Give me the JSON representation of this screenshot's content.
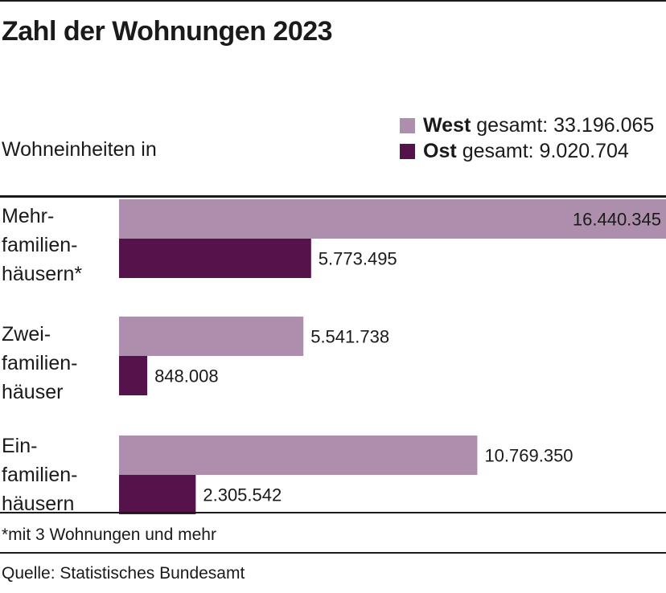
{
  "title": "Zahl der Wohnungen 2023",
  "units_label": "Wohneinheiten in",
  "legend": [
    {
      "name": "West",
      "text": "gesamt: 33.196.065",
      "color": "#ad8fad"
    },
    {
      "name": "Ost",
      "text": "gesamt: 9.020.704",
      "color": "#56124a"
    }
  ],
  "chart_data": {
    "type": "bar",
    "orientation": "horizontal",
    "categories": [
      "Mehr-\nfamilien-\nhäusern*",
      "Zwei-\nfamilien-\nhäuser",
      "Ein-\nfamilien-\nhäusern"
    ],
    "series": [
      {
        "name": "West",
        "values": [
          16440345,
          5541738,
          10769350
        ],
        "labels": [
          "16.440.345",
          "5.541.738",
          "10.769.350"
        ],
        "color": "#ad8fad"
      },
      {
        "name": "Ost",
        "values": [
          5773495,
          848008,
          2305542
        ],
        "labels": [
          "5.773.495",
          "848.008",
          "2.305.542"
        ],
        "color": "#56124a"
      }
    ],
    "xlim": [
      0,
      16440345
    ],
    "grid": false,
    "legend_position": "top-right"
  },
  "footnote": "*mit 3 Wohnungen und mehr",
  "source": "Quelle: Statistisches Bundesamt"
}
